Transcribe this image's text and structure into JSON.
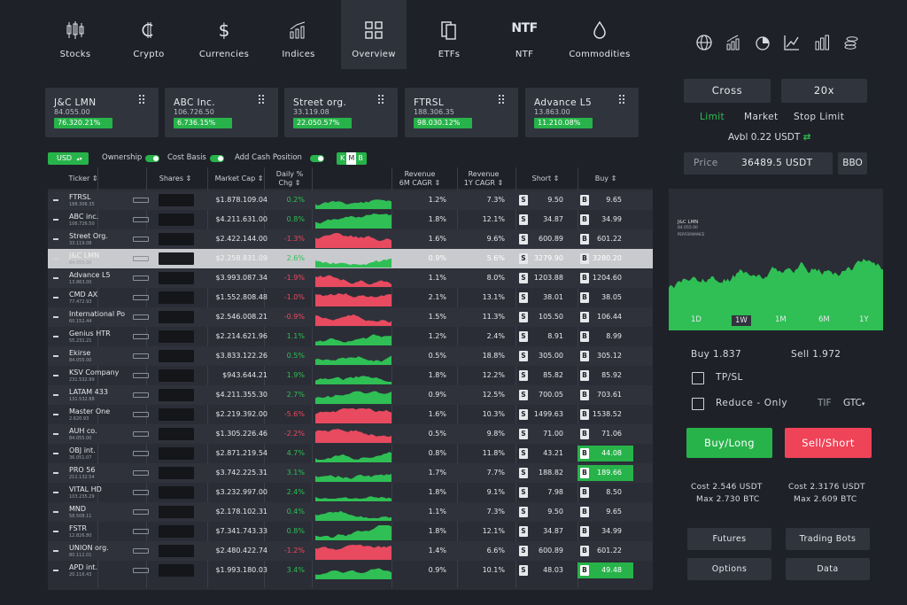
{
  "nav": {
    "tabs": [
      {
        "label": "Stocks",
        "icon": "candlestick-icon"
      },
      {
        "label": "Crypto",
        "icon": "crypto-coin-icon"
      },
      {
        "label": "Currencies",
        "icon": "dollar-icon"
      },
      {
        "label": "Indices",
        "icon": "indices-icon"
      },
      {
        "label": "Overview",
        "icon": "grid-icon",
        "active": true
      },
      {
        "label": "ETFs",
        "icon": "etf-icon"
      },
      {
        "label": "NTF",
        "icon": "ntf-icon"
      },
      {
        "label": "Commodities",
        "icon": "drop-icon"
      }
    ],
    "ntf_glyph": "NTF",
    "right_icons": [
      "globe-icon",
      "bar-growth-icon",
      "pie-icon",
      "line-chart-icon",
      "bar-chart-icon",
      "coins-icon"
    ]
  },
  "tickers": [
    {
      "name": "J&C LMN",
      "price": "84.055.00",
      "change": "76.320.21%"
    },
    {
      "name": "ABC Inc.",
      "price": "106.726.50",
      "change": "6.736.15%"
    },
    {
      "name": "Street org.",
      "price": "33.119.08",
      "change": "22.050.57%"
    },
    {
      "name": "FTRSL",
      "price": "188.306.35",
      "change": "98.030.12%"
    },
    {
      "name": "Advance L5",
      "price": "13.863.00",
      "change": "11.210.08%"
    }
  ],
  "filters": {
    "currency": "USD",
    "ownership": "Ownership",
    "cost_basis": "Cost Basis",
    "add_cash": "Add Cash Position",
    "kmb": [
      "K",
      "M",
      "B"
    ]
  },
  "table": {
    "headers": {
      "ticker": "Ticker",
      "shares": "Shares",
      "mcap": "Market Cap",
      "daily": "Daily %",
      "daily2": "Chg",
      "rev6": "Revenue",
      "rev6b": "6M CAGR",
      "rev1": "Revenue",
      "rev1b": "1Y CAGR",
      "short": "Short",
      "buy": "Buy"
    },
    "rows": [
      {
        "tk": "FTRSL",
        "p": "188.306.35",
        "mcap": "$1.878.109.04",
        "chg": "0.2%",
        "up": true,
        "r6": "1.2%",
        "r1": "7.3%",
        "s": "9.50",
        "b": "9.65"
      },
      {
        "tk": "ABC inc.",
        "p": "106.726.50",
        "mcap": "$4.211.631.00",
        "chg": "0.8%",
        "up": true,
        "r6": "1.8%",
        "r1": "12.1%",
        "s": "34.87",
        "b": "34.99"
      },
      {
        "tk": "Street Org.",
        "p": "33.119.08",
        "mcap": "$2.422.144.00",
        "chg": "-1.3%",
        "up": false,
        "r6": "1.6%",
        "r1": "9.6%",
        "s": "600.89",
        "b": "601.22"
      },
      {
        "tk": "J&C LMN",
        "p": "84.055.00",
        "mcap": "$2.258.831.09",
        "chg": "2.6%",
        "up": true,
        "r6": "0.9%",
        "r1": "5.6%",
        "s": "3279.90",
        "b": "3280.20",
        "sel": true
      },
      {
        "tk": "Advance L5",
        "p": "13.863.00",
        "mcap": "$3.993.087.34",
        "chg": "-1.9%",
        "up": false,
        "r6": "1.1%",
        "r1": "8.0%",
        "s": "1203.88",
        "b": "1204.60"
      },
      {
        "tk": "CMD AX",
        "p": "77.472.93",
        "mcap": "$1.552.808.48",
        "chg": "-1.0%",
        "up": false,
        "r6": "2.1%",
        "r1": "13.1%",
        "s": "38.01",
        "b": "38.05"
      },
      {
        "tk": "International Po",
        "p": "60.152.44",
        "mcap": "$2.546.008.21",
        "chg": "-0.9%",
        "up": false,
        "r6": "1.5%",
        "r1": "11.3%",
        "s": "105.50",
        "b": "106.44"
      },
      {
        "tk": "Genius HTR",
        "p": "55.231.21",
        "mcap": "$2.214.621.96",
        "chg": "1.1%",
        "up": true,
        "r6": "1.2%",
        "r1": "2.4%",
        "s": "8.91",
        "b": "8.99"
      },
      {
        "tk": "Ekirse",
        "p": "84.055.00",
        "mcap": "$3.833.122.26",
        "chg": "0.5%",
        "up": true,
        "r6": "0.5%",
        "r1": "18.8%",
        "s": "305.00",
        "b": "305.12"
      },
      {
        "tk": "KSV Company",
        "p": "231.532.99",
        "mcap": "$943.644.21",
        "chg": "1.9%",
        "up": true,
        "r6": "1.8%",
        "r1": "12.2%",
        "s": "85.82",
        "b": "85.92"
      },
      {
        "tk": "LATAM 433",
        "p": "131.532.88",
        "mcap": "$4.211.355.30",
        "chg": "2.7%",
        "up": true,
        "r6": "0.9%",
        "r1": "12.5%",
        "s": "700.05",
        "b": "703.61"
      },
      {
        "tk": "Master One",
        "p": "2.620.93",
        "mcap": "$2.219.392.00",
        "chg": "-5.6%",
        "up": false,
        "r6": "1.6%",
        "r1": "10.3%",
        "s": "1499.63",
        "b": "1538.52"
      },
      {
        "tk": "AUH co.",
        "p": "84.055.00",
        "mcap": "$1.305.226.46",
        "chg": "-2.2%",
        "up": false,
        "r6": "0.5%",
        "r1": "9.8%",
        "s": "71.00",
        "b": "71.06"
      },
      {
        "tk": "OBJ int.",
        "p": "36.051.07",
        "mcap": "$2.871.219.54",
        "chg": "4.7%",
        "up": true,
        "r6": "0.8%",
        "r1": "11.8%",
        "s": "43.21",
        "b": "44.08",
        "hl": true
      },
      {
        "tk": "PRO 56",
        "p": "211.132.54",
        "mcap": "$3.742.225.31",
        "chg": "3.1%",
        "up": true,
        "r6": "1.7%",
        "r1": "7.7%",
        "s": "188.82",
        "b": "189.66",
        "hl": true
      },
      {
        "tk": "VITAL HD",
        "p": "103.235.29",
        "mcap": "$3.232.997.00",
        "chg": "2.4%",
        "up": true,
        "r6": "1.8%",
        "r1": "9.1%",
        "s": "7.98",
        "b": "8.50"
      },
      {
        "tk": "MND",
        "p": "58.508.11",
        "mcap": "$2.178.102.31",
        "chg": "0.4%",
        "up": true,
        "r6": "1.1%",
        "r1": "7.3%",
        "s": "9.50",
        "b": "9.65"
      },
      {
        "tk": "FSTR",
        "p": "12.826.80",
        "mcap": "$7.341.743.33",
        "chg": "0.8%",
        "up": true,
        "r6": "1.8%",
        "r1": "12.1%",
        "s": "34.87",
        "b": "34.99"
      },
      {
        "tk": "UNION org.",
        "p": "80.112.01",
        "mcap": "$2.480.422.74",
        "chg": "-1.2%",
        "up": false,
        "r6": "1.4%",
        "r1": "6.6%",
        "s": "600.89",
        "b": "601.22"
      },
      {
        "tk": "APD int.",
        "p": "20.116.43",
        "mcap": "$1.993.180.03",
        "chg": "3.4%",
        "up": true,
        "r6": "0.9%",
        "r1": "10.1%",
        "s": "48.03",
        "b": "49.48",
        "hl": true
      }
    ]
  },
  "side": {
    "cross": "Cross",
    "leverage": "20x",
    "order_types": [
      "Limit",
      "Market",
      "Stop Limit"
    ],
    "avbl": "Avbl 0.22 USDT",
    "price_label": "Price",
    "price_value": "36489.5 USDT",
    "bbo": "BBO",
    "chart_name": "J&C LMN",
    "chart_price": "84.055.00",
    "chart_sub": "PERFORMANCE",
    "ranges": [
      "1D",
      "1W",
      "1M",
      "6M",
      "1Y"
    ],
    "buy": "Buy 1.837",
    "sell": "Sell 1.972",
    "tpsl": "TP/SL",
    "reduce": "Reduce - Only",
    "tif": "TIF",
    "gtc": "GTC",
    "buy_long": "Buy/Long",
    "sell_short": "Sell/Short",
    "cost_l": "Cost 2.546 USDT",
    "max_l": "Max 2.730 BTC",
    "cost_r": "Cost 2.3176 USDT",
    "max_r": "Max 2.609 BTC",
    "futures": "Futures",
    "bots": "Trading Bots",
    "options": "Options",
    "data": "Data"
  },
  "colors": {
    "up": "#2fbf55",
    "down": "#e84a5f",
    "bg": "#1e2128"
  }
}
